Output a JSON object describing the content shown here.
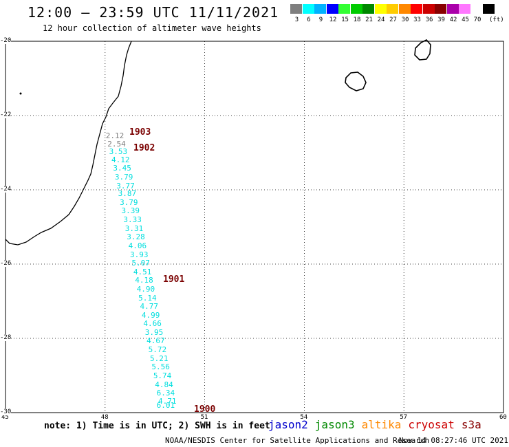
{
  "header": {
    "title": "12:00 – 23:59 UTC 11/11/2021",
    "subtitle": "12 hour collection of altimeter wave heights"
  },
  "scale": {
    "colors": [
      "#7f7f7f",
      "#00ffff",
      "#00b2ff",
      "#0000ff",
      "#33ff33",
      "#00cc00",
      "#008800",
      "#ffff00",
      "#ffcc00",
      "#ff8800",
      "#ff0000",
      "#cc0000",
      "#880000",
      "#aa00aa",
      "#ff77ff",
      "#ffffff",
      "#000000"
    ],
    "labels": [
      "3",
      "6",
      "9",
      "12",
      "15",
      "18",
      "21",
      "24",
      "27",
      "30",
      "33",
      "36",
      "39",
      "42",
      "45",
      "70"
    ],
    "unit": "(ft)"
  },
  "axes": {
    "x_ticks": [
      "45",
      "48",
      "51",
      "54",
      "57",
      "60"
    ],
    "y_ticks": [
      "-20",
      "-22",
      "-24",
      "-26",
      "-28",
      "-30"
    ]
  },
  "tracks": [
    {
      "id": "1903",
      "color": "#7a0000"
    },
    {
      "id": "1902",
      "color": "#7a0000"
    },
    {
      "id": "1901",
      "color": "#7a0000"
    },
    {
      "id": "1900",
      "color": "#7a0000"
    }
  ],
  "observations": [
    {
      "value": "2.12",
      "lon": 48.0,
      "lat": -22.55,
      "color": "#808080"
    },
    {
      "value": "2.54",
      "lon": 48.05,
      "lat": -22.78,
      "color": "#808080"
    },
    {
      "value": "3.53",
      "lon": 48.1,
      "lat": -22.98,
      "color": "#00dede"
    },
    {
      "value": "4.12",
      "lon": 48.17,
      "lat": -23.2,
      "color": "#00dede"
    },
    {
      "value": "3.45",
      "lon": 48.22,
      "lat": -23.42,
      "color": "#00dede"
    },
    {
      "value": "3.79",
      "lon": 48.27,
      "lat": -23.67,
      "color": "#00dede"
    },
    {
      "value": "3.77",
      "lon": 48.32,
      "lat": -23.9,
      "color": "#00dede"
    },
    {
      "value": "3.87",
      "lon": 48.37,
      "lat": -24.12,
      "color": "#00dede"
    },
    {
      "value": "3.79",
      "lon": 48.42,
      "lat": -24.35,
      "color": "#00dede"
    },
    {
      "value": "3.39",
      "lon": 48.47,
      "lat": -24.58,
      "color": "#00dede"
    },
    {
      "value": "3.33",
      "lon": 48.53,
      "lat": -24.82,
      "color": "#00dede"
    },
    {
      "value": "3.31",
      "lon": 48.58,
      "lat": -25.05,
      "color": "#00dede"
    },
    {
      "value": "3.28",
      "lon": 48.63,
      "lat": -25.28,
      "color": "#00dede"
    },
    {
      "value": "4.06",
      "lon": 48.68,
      "lat": -25.52,
      "color": "#00dede"
    },
    {
      "value": "3.93",
      "lon": 48.73,
      "lat": -25.75,
      "color": "#00dede"
    },
    {
      "value": "5.07",
      "lon": 48.78,
      "lat": -25.98,
      "color": "#00dede"
    },
    {
      "value": "4.51",
      "lon": 48.83,
      "lat": -26.22,
      "color": "#00dede"
    },
    {
      "value": "4.18",
      "lon": 48.88,
      "lat": -26.45,
      "color": "#00dede"
    },
    {
      "value": "4.90",
      "lon": 48.93,
      "lat": -26.68,
      "color": "#00dede"
    },
    {
      "value": "5.14",
      "lon": 48.98,
      "lat": -26.92,
      "color": "#00dede"
    },
    {
      "value": "4.77",
      "lon": 49.03,
      "lat": -27.15,
      "color": "#00dede"
    },
    {
      "value": "4.99",
      "lon": 49.08,
      "lat": -27.38,
      "color": "#00dede"
    },
    {
      "value": "4.66",
      "lon": 49.13,
      "lat": -27.62,
      "color": "#00dede"
    },
    {
      "value": "3.95",
      "lon": 49.18,
      "lat": -27.85,
      "color": "#00dede"
    },
    {
      "value": "4.67",
      "lon": 49.23,
      "lat": -28.08,
      "color": "#00dede"
    },
    {
      "value": "5.72",
      "lon": 49.28,
      "lat": -28.32,
      "color": "#00dede"
    },
    {
      "value": "5.21",
      "lon": 49.33,
      "lat": -28.55,
      "color": "#00dede"
    },
    {
      "value": "5.56",
      "lon": 49.38,
      "lat": -28.78,
      "color": "#00dede"
    },
    {
      "value": "5.74",
      "lon": 49.43,
      "lat": -29.02,
      "color": "#00dede"
    },
    {
      "value": "4.84",
      "lon": 49.48,
      "lat": -29.25,
      "color": "#00dede"
    },
    {
      "value": "6.34",
      "lon": 49.53,
      "lat": -29.48,
      "color": "#00dede"
    },
    {
      "value": "4.71",
      "lon": 49.58,
      "lat": -29.7,
      "color": "#00dede"
    },
    {
      "value": "6.01",
      "lon": 49.53,
      "lat": -29.82,
      "color": "#00dede"
    }
  ],
  "footer": {
    "note": "note: 1) Time is in UTC; 2) SWH is in feet",
    "satellites": [
      {
        "name": "jason2",
        "color": "#0000cc"
      },
      {
        "name": "jason3",
        "color": "#008800"
      },
      {
        "name": "altika",
        "color": "#ff8800"
      },
      {
        "name": "cryosat",
        "color": "#cc0000"
      },
      {
        "name": "s3a",
        "color": "#880000"
      }
    ],
    "credit": "NOAA/NESDIS Center for Satellite Applications and Research",
    "timestamp": "Nov 14 08:27:46 UTC 2021"
  }
}
